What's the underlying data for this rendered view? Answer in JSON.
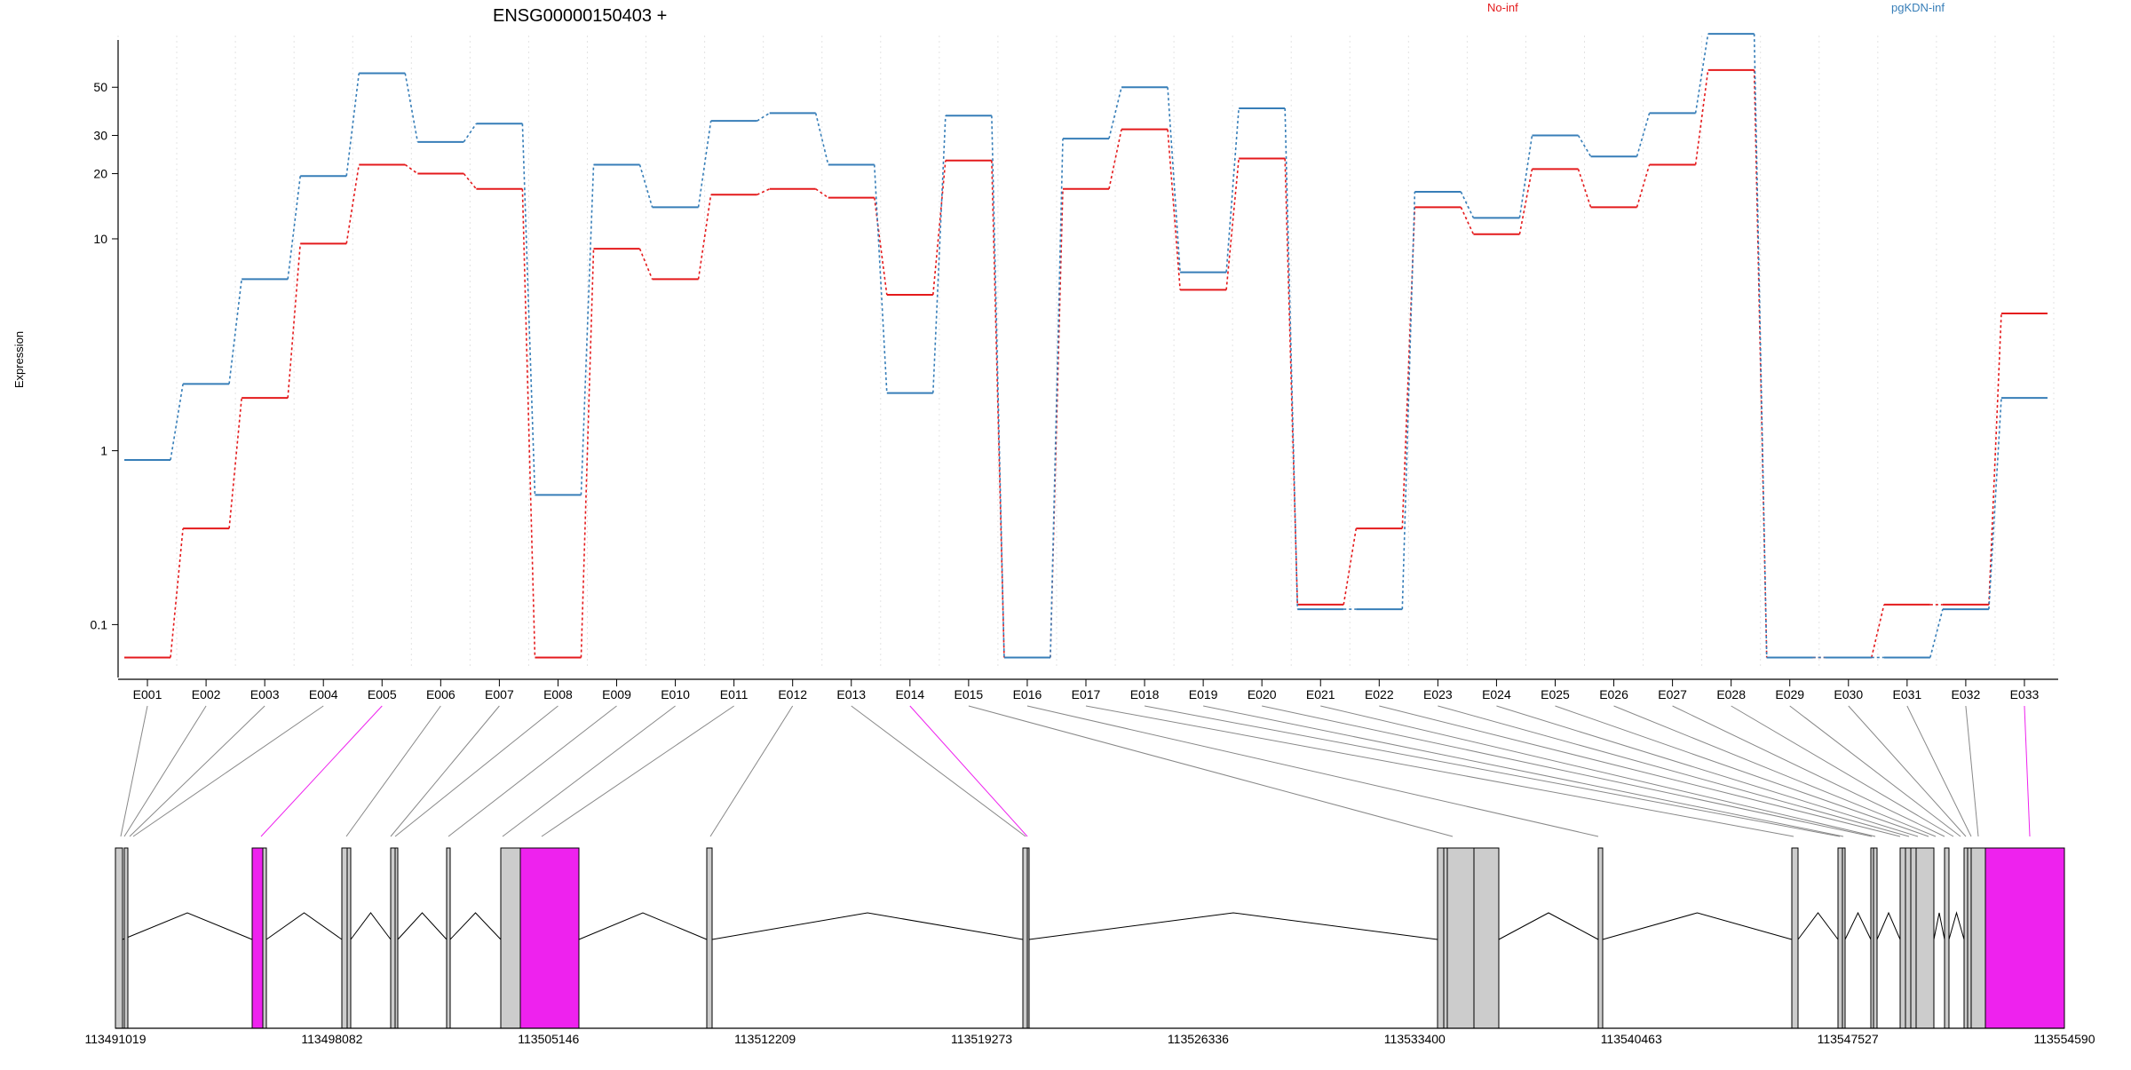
{
  "chart_data": {
    "type": "line",
    "title": "ENSG00000150403 +",
    "ylabel": "Expression",
    "xlabel": "",
    "y_scale": "log",
    "yticks": [
      "0.1",
      "1",
      "10",
      "20",
      "30",
      "50"
    ],
    "categories": [
      "E001",
      "E002",
      "E003",
      "E004",
      "E005",
      "E006",
      "E007",
      "E008",
      "E009",
      "E010",
      "E011",
      "E012",
      "E013",
      "E014",
      "E015",
      "E016",
      "E017",
      "E018",
      "E019",
      "E020",
      "E021",
      "E022",
      "E023",
      "E024",
      "E025",
      "E026",
      "E027",
      "E028",
      "E029",
      "E030",
      "E031",
      "E032",
      "E033"
    ],
    "series": [
      {
        "name": "No-inf",
        "color": "#e41a1c",
        "values": [
          0.05,
          0.4,
          1.8,
          9.5,
          22,
          20,
          17,
          0.05,
          9,
          6.5,
          16,
          17,
          15.5,
          5.5,
          23,
          0.05,
          17,
          32,
          5.8,
          23.5,
          0.14,
          0.4,
          14,
          10.5,
          21,
          14,
          22,
          60,
          0.05,
          0.05,
          0.14,
          0.14,
          4.5
        ]
      },
      {
        "name": "pgKDN-inf",
        "color": "#377eb8",
        "values": [
          0.9,
          2.1,
          6.5,
          19.5,
          58,
          28,
          34,
          0.6,
          22,
          14,
          35,
          38,
          22,
          1.9,
          37,
          0.05,
          29,
          50,
          7,
          40,
          0.13,
          0.13,
          16.5,
          12.5,
          30,
          24,
          38,
          88,
          0.05,
          0.05,
          0.05,
          0.13,
          1.8
        ]
      }
    ],
    "gene_model": {
      "coordinate_labels": [
        "113491019",
        "113498082",
        "113505146",
        "113512209",
        "113519273",
        "113526336",
        "113533400",
        "113540463",
        "113547527",
        "113554590"
      ],
      "highlight_color": "#ee22ee",
      "exon_fill": "#cccccc",
      "highlighted_exons": [
        "E005",
        "E014",
        "E033"
      ]
    }
  }
}
